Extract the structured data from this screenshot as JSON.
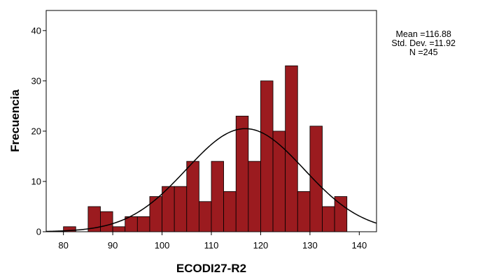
{
  "chart_data": {
    "type": "bar",
    "title": "",
    "xlabel": "ECODI27-R2",
    "ylabel": "Frecuencia",
    "xlim": [
      76.5,
      143.5
    ],
    "ylim": [
      0,
      44
    ],
    "x_ticks": [
      80,
      90,
      100,
      110,
      120,
      130,
      140
    ],
    "y_ticks": [
      0,
      10,
      20,
      30,
      40
    ],
    "bin_width": 2.5,
    "bin_starts": [
      80,
      82.5,
      85,
      87.5,
      90,
      92.5,
      95,
      97.5,
      100,
      102.5,
      105,
      107.5,
      110,
      112.5,
      115,
      117.5,
      120,
      122.5,
      125,
      127.5,
      130,
      132.5,
      135
    ],
    "values": [
      1,
      0,
      5,
      4,
      1,
      3,
      3,
      7,
      9,
      9,
      14,
      6,
      14,
      8,
      23,
      14,
      30,
      20,
      33,
      8,
      21,
      5,
      7
    ],
    "bar_color": "#9b1b1f",
    "curve": {
      "type": "normal",
      "mean": 116.88,
      "sd": 11.92,
      "n": 245
    },
    "grid": false
  },
  "stats": {
    "mean": "Mean =116.88",
    "std_dev": "Std. Dev. =11.92",
    "n": "N =245"
  }
}
